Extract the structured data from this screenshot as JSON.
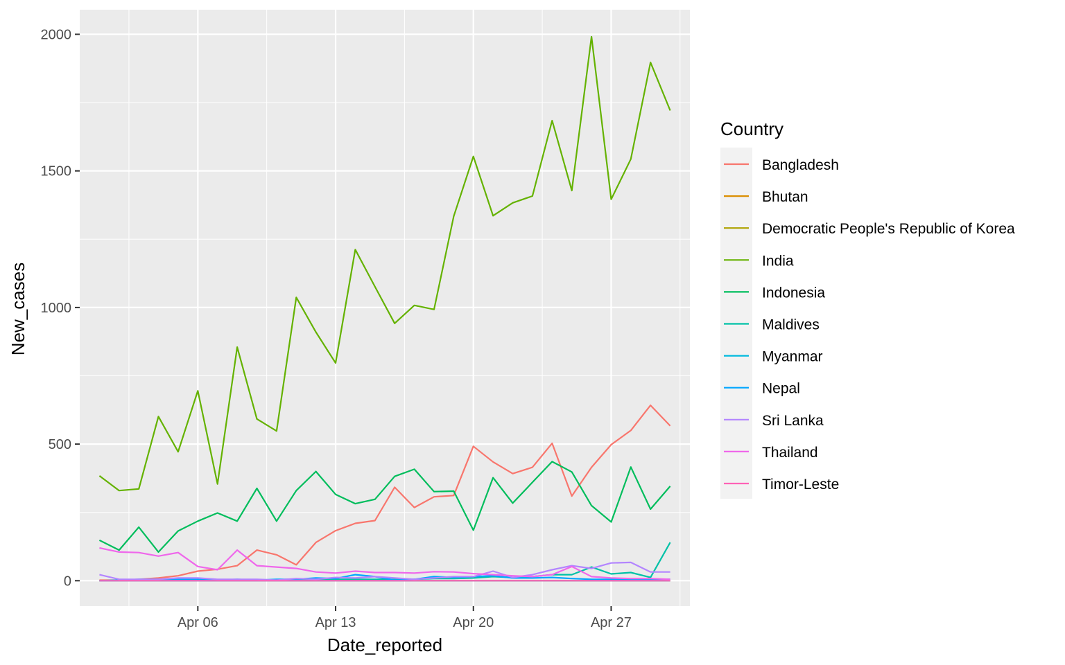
{
  "chart_data": {
    "type": "line",
    "xlabel": "Date_reported",
    "ylabel": "New_cases",
    "legend_title": "Country",
    "legend_position": "right",
    "grid": true,
    "xlim": [
      "2021-03-31",
      "2021-05-01"
    ],
    "ylim": [
      -93,
      2090
    ],
    "x_ticks": [
      {
        "date": "2021-04-06",
        "label": "Apr 06"
      },
      {
        "date": "2021-04-13",
        "label": "Apr 13"
      },
      {
        "date": "2021-04-20",
        "label": "Apr 20"
      },
      {
        "date": "2021-04-27",
        "label": "Apr 27"
      }
    ],
    "y_ticks": [
      0,
      500,
      1000,
      1500,
      2000
    ],
    "x": [
      "2021-04-01",
      "2021-04-02",
      "2021-04-03",
      "2021-04-04",
      "2021-04-05",
      "2021-04-06",
      "2021-04-07",
      "2021-04-08",
      "2021-04-09",
      "2021-04-10",
      "2021-04-11",
      "2021-04-12",
      "2021-04-13",
      "2021-04-14",
      "2021-04-15",
      "2021-04-16",
      "2021-04-17",
      "2021-04-18",
      "2021-04-19",
      "2021-04-20",
      "2021-04-21",
      "2021-04-22",
      "2021-04-23",
      "2021-04-24",
      "2021-04-25",
      "2021-04-26",
      "2021-04-27",
      "2021-04-28",
      "2021-04-29",
      "2021-04-30"
    ],
    "series": [
      {
        "name": "Bangladesh",
        "color": "#F8766D",
        "values": [
          2,
          2,
          5,
          10,
          18,
          35,
          42,
          55,
          112,
          95,
          58,
          140,
          183,
          210,
          220,
          342,
          268,
          307,
          312,
          492,
          435,
          392,
          415,
          503,
          310,
          415,
          498,
          550,
          642,
          567
        ]
      },
      {
        "name": "Bhutan",
        "color": "#DB8E00",
        "values": [
          0,
          0,
          0,
          0,
          0,
          0,
          0,
          0,
          0,
          0,
          0,
          0,
          0,
          0,
          0,
          0,
          0,
          0,
          0,
          0,
          0,
          0,
          0,
          0,
          0,
          0,
          0,
          0,
          0,
          0
        ]
      },
      {
        "name": "Democratic People's Republic of Korea",
        "color": "#AEA200",
        "values": [
          0,
          0,
          0,
          0,
          0,
          0,
          0,
          0,
          0,
          0,
          0,
          0,
          0,
          0,
          0,
          0,
          0,
          0,
          0,
          0,
          0,
          0,
          0,
          0,
          0,
          0,
          0,
          0,
          0,
          0
        ]
      },
      {
        "name": "India",
        "color": "#64B200",
        "values": [
          384,
          330,
          336,
          601,
          472,
          695,
          354,
          855,
          592,
          548,
          1037,
          910,
          797,
          1212,
          1076,
          942,
          1008,
          993,
          1334,
          1553,
          1336,
          1383,
          1408,
          1684,
          1428,
          1991,
          1396,
          1543,
          1897,
          1721
        ]
      },
      {
        "name": "Indonesia",
        "color": "#00BD5C",
        "values": [
          148,
          112,
          196,
          105,
          182,
          218,
          248,
          218,
          338,
          218,
          330,
          400,
          316,
          282,
          298,
          382,
          408,
          326,
          328,
          185,
          377,
          284,
          360,
          436,
          398,
          275,
          215,
          416,
          262,
          346
        ]
      },
      {
        "name": "Maldives",
        "color": "#00C1A7",
        "values": [
          0,
          0,
          0,
          0,
          0,
          0,
          0,
          0,
          0,
          2,
          2,
          2,
          5,
          5,
          5,
          5,
          5,
          8,
          8,
          10,
          15,
          12,
          15,
          22,
          22,
          50,
          25,
          30,
          12,
          140
        ]
      },
      {
        "name": "Myanmar",
        "color": "#00BADE",
        "values": [
          0,
          0,
          0,
          0,
          0,
          0,
          0,
          0,
          0,
          0,
          0,
          0,
          0,
          0,
          0,
          0,
          0,
          0,
          0,
          0,
          0,
          0,
          0,
          0,
          0,
          0,
          0,
          0,
          0,
          0
        ]
      },
      {
        "name": "Nepal",
        "color": "#00A6FF",
        "values": [
          0,
          2,
          5,
          5,
          5,
          5,
          2,
          5,
          2,
          5,
          5,
          10,
          8,
          22,
          15,
          2,
          5,
          15,
          12,
          15,
          18,
          10,
          10,
          12,
          8,
          5,
          5,
          5,
          5,
          5
        ]
      },
      {
        "name": "Sri Lanka",
        "color": "#B385FF",
        "values": [
          22,
          5,
          5,
          5,
          10,
          10,
          5,
          5,
          5,
          2,
          8,
          5,
          12,
          10,
          15,
          10,
          5,
          10,
          15,
          15,
          35,
          12,
          22,
          40,
          55,
          45,
          65,
          67,
          32,
          32
        ]
      },
      {
        "name": "Thailand",
        "color": "#EF67EB",
        "values": [
          120,
          105,
          103,
          90,
          103,
          52,
          40,
          112,
          55,
          50,
          45,
          32,
          28,
          35,
          30,
          30,
          28,
          33,
          32,
          26,
          22,
          18,
          15,
          22,
          52,
          15,
          10,
          8,
          8,
          5
        ]
      },
      {
        "name": "Timor-Leste",
        "color": "#FF63B6",
        "values": [
          0,
          0,
          0,
          0,
          0,
          0,
          0,
          0,
          0,
          0,
          0,
          0,
          0,
          0,
          0,
          0,
          0,
          0,
          0,
          0,
          0,
          0,
          0,
          0,
          0,
          0,
          0,
          0,
          0,
          0
        ]
      }
    ]
  }
}
